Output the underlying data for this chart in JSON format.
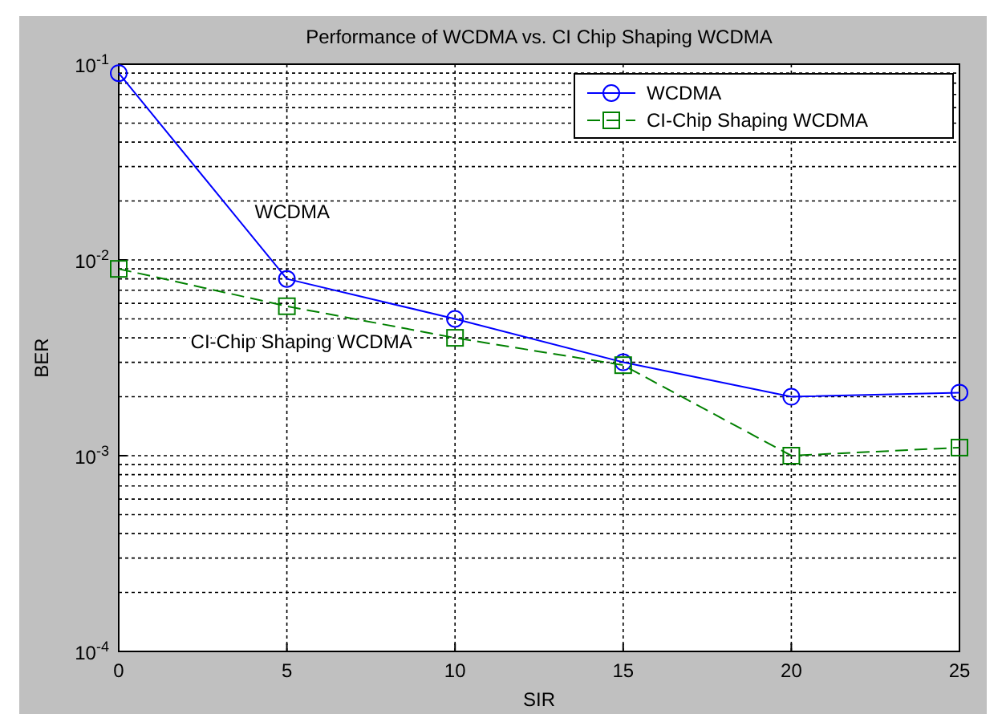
{
  "chart_data": {
    "type": "line",
    "title": "Performance of WCDMA vs. CI Chip Shaping WCDMA",
    "xlabel": "SIR",
    "ylabel": "BER",
    "x": [
      0,
      5,
      10,
      15,
      20,
      25
    ],
    "series": [
      {
        "name": "WCDMA",
        "color": "#0000ff",
        "values": [
          0.09,
          0.008,
          0.005,
          0.003,
          0.002,
          0.0021
        ],
        "marker": "circle",
        "line_style": "solid"
      },
      {
        "name": "CI-Chip Shaping WCDMA",
        "color": "#008000",
        "values": [
          0.009,
          0.0058,
          0.004,
          0.0029,
          0.001,
          0.0011
        ],
        "marker": "square",
        "line_style": "dashed"
      }
    ],
    "log": "y",
    "xlim": [
      0,
      25
    ],
    "xticks": [
      0,
      5,
      10,
      15,
      20,
      25
    ],
    "ylim": [
      0.0001,
      0.1
    ],
    "yticks": [
      {
        "value": 0.0001,
        "label": "10$^{-4}$"
      },
      {
        "value": 0.001,
        "label": "10$^{-3}$"
      },
      {
        "value": 0.01,
        "label": "10$^{-2}$"
      },
      {
        "value": 0.1,
        "label": "10$^{-1}$"
      }
    ],
    "grid": true,
    "legend": "top right",
    "annotations": [
      "WCDMA",
      "CI-Chip Shaping WCDMA"
    ]
  }
}
